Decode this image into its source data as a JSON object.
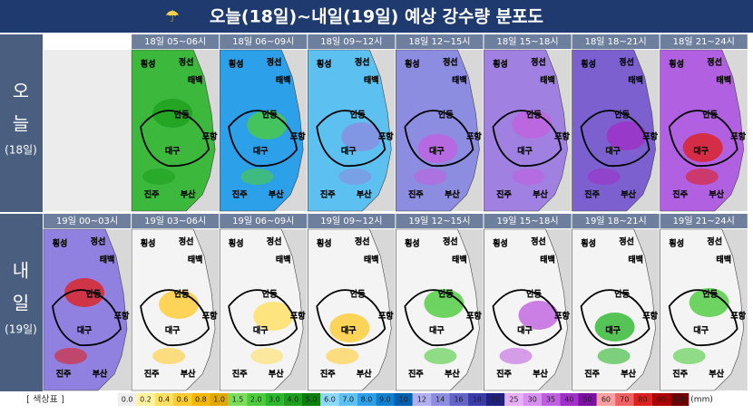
{
  "header": {
    "title": "오늘(18일)~내일(19일) 예상 강수량 분포도"
  },
  "rows": [
    {
      "label_1": "오",
      "label_2": "늘",
      "label_date": "(18일)",
      "panels": [
        "18일 05~06시",
        "18일 06~09시",
        "18일 09~12시",
        "18일 12~15시",
        "18일 15~18시",
        "18일 18~21시",
        "18일 21~24시"
      ]
    },
    {
      "label_1": "내",
      "label_2": "일",
      "label_date": "(19일)",
      "panels": [
        "19일 00~03시",
        "19일 03~06시",
        "19일 06~09시",
        "19일 09~12시",
        "19일 12~15시",
        "19일 15~18시",
        "19일 18~21시",
        "19일 21~24시"
      ]
    }
  ],
  "map_labels": [
    "횡성",
    "정선",
    "태백",
    "안동",
    "포항",
    "대구",
    "진주",
    "부산"
  ],
  "legend": {
    "title": "[ 색상표 ]",
    "unit": "(mm)",
    "items": [
      {
        "label": "0.0",
        "color": "#eeeeee"
      },
      {
        "label": "0.2",
        "color": "#fff3a0"
      },
      {
        "label": "0.4",
        "color": "#ffe060"
      },
      {
        "label": "0.6",
        "color": "#ffcc30"
      },
      {
        "label": "0.8",
        "color": "#f5b800"
      },
      {
        "label": "1.0",
        "color": "#e0a800"
      },
      {
        "label": "1.5",
        "color": "#7cdc5c"
      },
      {
        "label": "2.0",
        "color": "#4ccc3c"
      },
      {
        "label": "3.0",
        "color": "#2cb82c"
      },
      {
        "label": "4.0",
        "color": "#1ea01e"
      },
      {
        "label": "5.0",
        "color": "#0c800c"
      },
      {
        "label": "6.0",
        "color": "#8cd8f8"
      },
      {
        "label": "7.0",
        "color": "#5cc0f0"
      },
      {
        "label": "8.0",
        "color": "#2ca0e8"
      },
      {
        "label": "9.0",
        "color": "#1080d0"
      },
      {
        "label": "10",
        "color": "#0060b0"
      },
      {
        "label": "12",
        "color": "#b0b0f0"
      },
      {
        "label": "14",
        "color": "#8c8ce0"
      },
      {
        "label": "16",
        "color": "#6464c8"
      },
      {
        "label": "18",
        "color": "#3c3ca8"
      },
      {
        "label": "20",
        "color": "#202080"
      },
      {
        "label": "25",
        "color": "#e8b0f8"
      },
      {
        "label": "30",
        "color": "#d890f0"
      },
      {
        "label": "35",
        "color": "#c060e0"
      },
      {
        "label": "40",
        "color": "#a030c8"
      },
      {
        "label": "50",
        "color": "#7c10a0"
      },
      {
        "label": "60",
        "color": "#f8a0a0"
      },
      {
        "label": "70",
        "color": "#f06060"
      },
      {
        "label": "80",
        "color": "#e02020"
      },
      {
        "label": "90",
        "color": "#b00000"
      },
      {
        "label": "100",
        "color": "#700000"
      }
    ]
  }
}
